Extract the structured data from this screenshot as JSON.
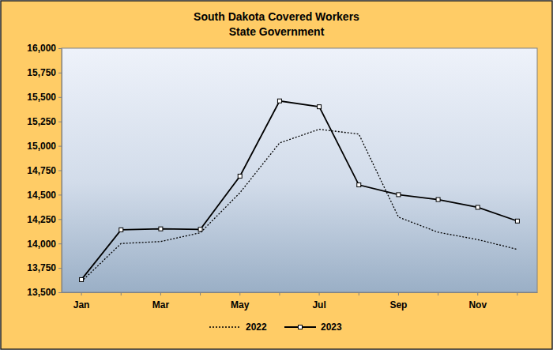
{
  "chart_data": {
    "type": "line",
    "title": "South Dakota Covered Workers",
    "subtitle": "State Government",
    "categories": [
      "Jan",
      null,
      "Mar",
      null,
      "May",
      null,
      "Jul",
      null,
      "Sep",
      null,
      "Nov",
      null
    ],
    "series": [
      {
        "name": "2022",
        "color": "#000000",
        "line_style": "dotted",
        "marker": "none",
        "values": [
          13610,
          14000,
          14020,
          14110,
          14520,
          15030,
          15170,
          15120,
          14270,
          14115,
          14040,
          13940
        ]
      },
      {
        "name": "2023",
        "color": "#000000",
        "line_style": "solid",
        "marker": "square",
        "values": [
          13630,
          14140,
          14150,
          14145,
          14690,
          15460,
          15400,
          14600,
          14500,
          14450,
          14370,
          14230
        ]
      }
    ],
    "ylim": [
      13500,
      16000
    ],
    "yticks": [
      {
        "value": 13500,
        "label": "13,500"
      },
      {
        "value": 13750,
        "label": "13,750"
      },
      {
        "value": 14000,
        "label": "14,000"
      },
      {
        "value": 14250,
        "label": "14,250"
      },
      {
        "value": 14500,
        "label": "14,500"
      },
      {
        "value": 14750,
        "label": "14,750"
      },
      {
        "value": 15000,
        "label": "15,000"
      },
      {
        "value": 15250,
        "label": "15,250"
      },
      {
        "value": 15500,
        "label": "15,500"
      },
      {
        "value": 15750,
        "label": "15,750"
      },
      {
        "value": 16000,
        "label": "16,000"
      }
    ],
    "grid": false,
    "legend": "bottom"
  }
}
